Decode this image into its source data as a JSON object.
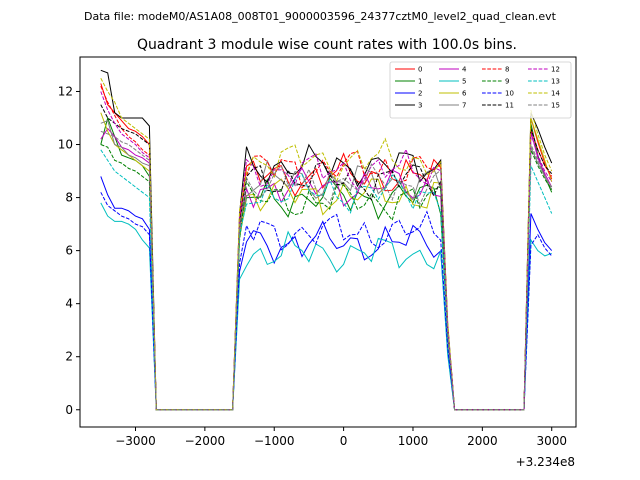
{
  "figure": {
    "suptitle": "Data file: modeM0/AS1A08_008T01_9000003596_24377cztM0_level2_quad_clean.evt"
  },
  "chart_data": {
    "type": "line",
    "title": "Quadrant 3 module wise count rates with 100.0s bins.",
    "xlabel": "",
    "ylabel": "",
    "x_offset_label": "+3.234e8",
    "xlim": [
      -3800,
      3350
    ],
    "ylim": [
      -0.65,
      13.3
    ],
    "xticks": [
      -3000,
      -2000,
      -1000,
      0,
      1000,
      2000,
      3000
    ],
    "xtick_labels": [
      "−3000",
      "−2000",
      "−1000",
      "0",
      "1000",
      "2000",
      "3000"
    ],
    "yticks": [
      0,
      2,
      4,
      6,
      8,
      10,
      12
    ],
    "ytick_labels": [
      "0",
      "2",
      "4",
      "6",
      "8",
      "10",
      "12"
    ],
    "grid": false,
    "legend_placement": "top-right",
    "legend_columns": 4,
    "segments": [
      {
        "x_start": -3500,
        "x_end": -2800,
        "step": 100
      },
      {
        "x_start": -1500,
        "x_end": 1400,
        "step": 100
      },
      {
        "x_start": 2700,
        "x_end": 3000,
        "step": 100
      }
    ],
    "zero_ranges": [
      [
        -2700,
        -1600
      ],
      [
        1600,
        2600
      ]
    ],
    "series": [
      {
        "name": "0",
        "color": "#ff0000",
        "dash": "solid",
        "a": [
          12.3,
          11.5,
          11.2,
          10.9,
          10.6,
          10.5,
          10.3,
          10.0
        ],
        "b": 8.8,
        "c": [
          11.0,
          10.1,
          9.3,
          8.7
        ]
      },
      {
        "name": "1",
        "color": "#008000",
        "dash": "solid",
        "a": [
          10.0,
          11.0,
          10.3,
          9.6,
          9.5,
          9.4,
          9.2,
          8.8
        ],
        "b": 8.0,
        "c": [
          10.8,
          9.6,
          8.8,
          8.2
        ]
      },
      {
        "name": "2",
        "color": "#0000ff",
        "dash": "solid",
        "a": [
          8.8,
          8.1,
          7.6,
          7.6,
          7.5,
          7.3,
          7.2,
          6.8
        ],
        "b": 6.3,
        "c": [
          7.4,
          6.8,
          6.3,
          6.0
        ]
      },
      {
        "name": "3",
        "color": "#000000",
        "dash": "solid",
        "a": [
          12.8,
          12.7,
          11.2,
          11.0,
          11.0,
          11.0,
          11.0,
          10.7
        ],
        "b": 9.2,
        "c": [
          11.2,
          10.6,
          9.9,
          9.3
        ]
      },
      {
        "name": "4",
        "color": "#bf00bf",
        "dash": "solid",
        "a": [
          10.2,
          10.6,
          10.3,
          9.9,
          9.8,
          9.6,
          9.5,
          9.3
        ],
        "b": 8.4,
        "c": [
          10.5,
          9.5,
          8.9,
          8.4
        ]
      },
      {
        "name": "5",
        "color": "#00bfbf",
        "dash": "solid",
        "a": [
          7.8,
          7.3,
          7.1,
          7.1,
          7.0,
          6.8,
          6.4,
          6.1
        ],
        "b": 5.9,
        "c": [
          6.4,
          6.0,
          5.8,
          5.9
        ]
      },
      {
        "name": "6",
        "color": "#bfbf00",
        "dash": "solid",
        "a": [
          11.2,
          10.5,
          10.0,
          9.8,
          9.6,
          9.4,
          9.2,
          9.0
        ],
        "b": 8.1,
        "c": [
          11.0,
          10.2,
          9.4,
          8.6
        ]
      },
      {
        "name": "7",
        "color": "#808080",
        "dash": "solid",
        "a": [
          10.8,
          10.9,
          10.0,
          9.9,
          9.6,
          9.5,
          9.3,
          9.2
        ],
        "b": 8.6,
        "c": [
          9.9,
          9.3,
          8.8,
          8.3
        ]
      },
      {
        "name": "8",
        "color": "#ff0000",
        "dash": "dashed",
        "a": [
          12.2,
          11.6,
          11.1,
          10.6,
          10.3,
          10.1,
          9.8,
          9.6
        ],
        "b": 9.1,
        "c": [
          10.6,
          9.8,
          9.2,
          8.8
        ]
      },
      {
        "name": "9",
        "color": "#008000",
        "dash": "dashed",
        "a": [
          10.0,
          9.9,
          9.4,
          9.3,
          9.1,
          9.0,
          8.8,
          8.6
        ],
        "b": 7.9,
        "c": [
          9.8,
          9.2,
          8.7,
          8.3
        ]
      },
      {
        "name": "10",
        "color": "#0000ff",
        "dash": "dashed",
        "a": [
          8.2,
          7.7,
          7.5,
          7.3,
          7.2,
          7.0,
          6.9,
          6.6
        ],
        "b": 6.7,
        "c": [
          6.2,
          6.6,
          6.1,
          5.8
        ]
      },
      {
        "name": "11",
        "color": "#000000",
        "dash": "dashed",
        "a": [
          11.5,
          11.0,
          10.8,
          10.6,
          10.5,
          10.4,
          10.2,
          10.0
        ],
        "b": 8.7,
        "c": [
          10.6,
          9.8,
          9.2,
          8.9
        ]
      },
      {
        "name": "12",
        "color": "#bf00bf",
        "dash": "dashed",
        "a": [
          12.0,
          11.3,
          10.8,
          10.4,
          10.2,
          10.0,
          9.7,
          9.5
        ],
        "b": 9.0,
        "c": [
          10.4,
          9.6,
          9.0,
          8.6
        ]
      },
      {
        "name": "13",
        "color": "#00bfbf",
        "dash": "dashed",
        "a": [
          9.8,
          9.4,
          9.0,
          8.8,
          8.6,
          8.4,
          8.2,
          8.0
        ],
        "b": 8.2,
        "c": [
          9.2,
          8.6,
          8.0,
          7.4
        ]
      },
      {
        "name": "14",
        "color": "#bfbf00",
        "dash": "dashed",
        "a": [
          12.5,
          12.0,
          11.6,
          11.0,
          10.8,
          10.6,
          10.4,
          10.2
        ],
        "b": 9.4,
        "c": [
          11.3,
          10.4,
          9.6,
          9.0
        ]
      },
      {
        "name": "15",
        "color": "#808080",
        "dash": "dashed",
        "a": [
          10.5,
          10.4,
          10.3,
          10.1,
          10.0,
          9.8,
          9.6,
          9.4
        ],
        "b": 8.5,
        "c": [
          10.0,
          9.4,
          8.8,
          8.4
        ]
      }
    ]
  }
}
